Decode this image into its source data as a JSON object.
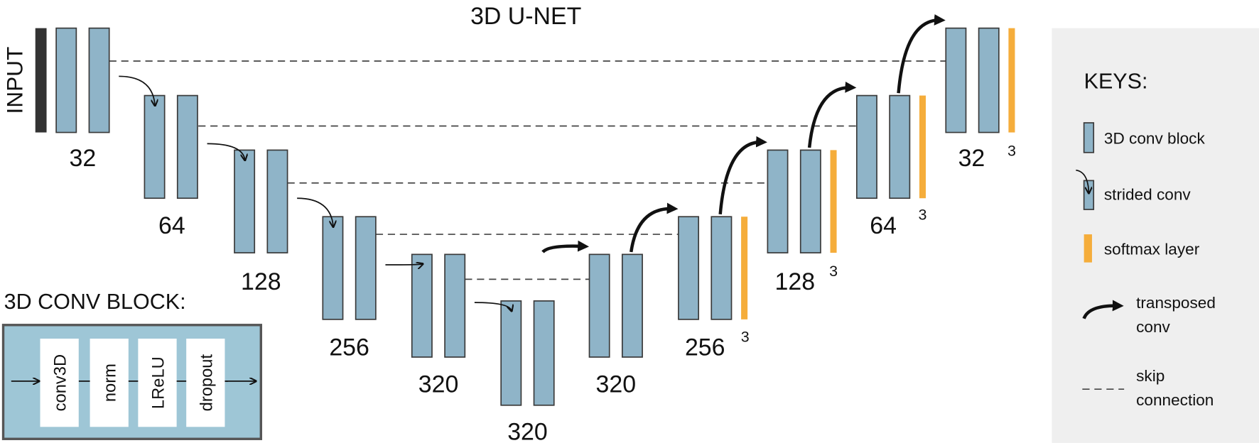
{
  "title": "3D U-NET",
  "input_label": "INPUT",
  "encoder_labels": [
    "32",
    "64",
    "128",
    "256",
    "320"
  ],
  "bottleneck_label": "320",
  "decoder_labels": [
    "320",
    "256",
    "128",
    "64",
    "32"
  ],
  "softmax_labels": [
    "3",
    "3",
    "3",
    "3"
  ],
  "keys": {
    "heading": "KEYS:",
    "conv_block": "3D conv block",
    "strided_conv": "strided conv",
    "softmax_layer": "softmax layer",
    "transposed_conv": [
      "transposed",
      "conv"
    ],
    "skip_connection": [
      "skip",
      "connection"
    ]
  },
  "conv_block": {
    "heading": "3D CONV BLOCK:",
    "layers": [
      "conv3D",
      "norm",
      "LReLU",
      "dropout"
    ]
  }
}
